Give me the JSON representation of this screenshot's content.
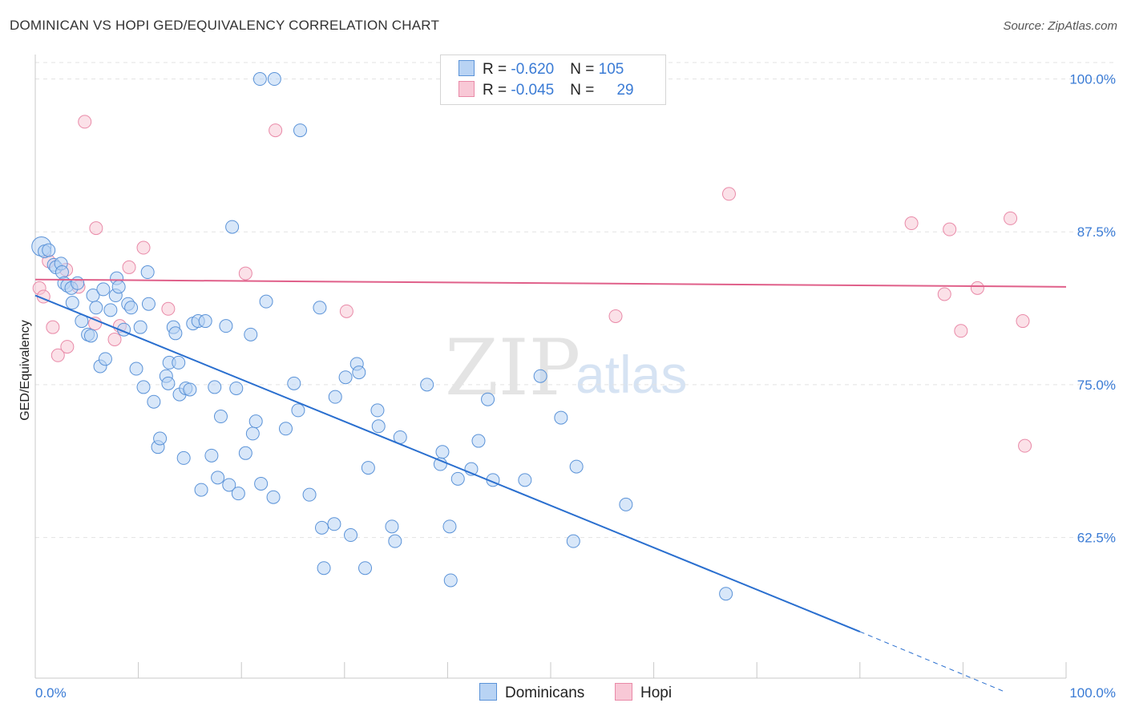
{
  "title": "DOMINICAN VS HOPI GED/EQUIVALENCY CORRELATION CHART",
  "source": "Source: ZipAtlas.com",
  "watermark": {
    "zip": "ZIP",
    "atlas": "atlas"
  },
  "legend": {
    "rows": [
      {
        "r_label": "R = ",
        "r_value": "-0.620",
        "n_label": "N = ",
        "n_value": "105"
      },
      {
        "r_label": "R = ",
        "r_value": "-0.045",
        "n_label": "N = ",
        "n_value": "29"
      }
    ]
  },
  "bottom_legend": {
    "dominicans": "Dominicans",
    "hopi": "Hopi"
  },
  "colors": {
    "blue_fill": "#b8d3f4",
    "blue_stroke": "#5b93d8",
    "blue_line": "#2a6fcf",
    "pink_fill": "#f8c8d6",
    "pink_stroke": "#e98aa8",
    "pink_line": "#e0608a",
    "tick_text": "#3a7bd5",
    "grid": "#e3e3e3"
  },
  "chart_data": {
    "type": "scatter",
    "title": "DOMINICAN VS HOPI GED/EQUIVALENCY CORRELATION CHART",
    "xlabel": "",
    "ylabel": "GED/Equivalency",
    "xlim": [
      0,
      100
    ],
    "ylim": [
      51,
      102
    ],
    "x_tick_labels": [
      "0.0%",
      "100.0%"
    ],
    "y_ticks": [
      62.5,
      75.0,
      87.5,
      100.0
    ],
    "y_tick_labels": [
      "62.5%",
      "75.0%",
      "87.5%",
      "100.0%"
    ],
    "grid": "horizontal dashed",
    "legend_position": "top-center",
    "series": [
      {
        "name": "Dominicans",
        "color": "#5b93d8",
        "trend": {
          "x": [
            0,
            80
          ],
          "y": [
            82.3,
            54.8
          ],
          "dashed_extension": {
            "x": [
              80,
              94
            ],
            "y": [
              54.8,
              49.9
            ]
          }
        },
        "points": [
          [
            0.6,
            86.3
          ],
          [
            0.9,
            85.9
          ],
          [
            1.3,
            86.0
          ],
          [
            1.8,
            84.8
          ],
          [
            2.0,
            84.6
          ],
          [
            2.5,
            84.9
          ],
          [
            2.6,
            84.2
          ],
          [
            2.8,
            83.3
          ],
          [
            3.1,
            83.1
          ],
          [
            3.5,
            82.9
          ],
          [
            4.1,
            83.3
          ],
          [
            3.6,
            81.7
          ],
          [
            4.5,
            80.2
          ],
          [
            5.1,
            79.1
          ],
          [
            5.4,
            79.0
          ],
          [
            5.6,
            82.3
          ],
          [
            5.9,
            81.3
          ],
          [
            6.3,
            76.5
          ],
          [
            6.6,
            82.8
          ],
          [
            6.8,
            77.1
          ],
          [
            7.3,
            81.1
          ],
          [
            7.8,
            82.3
          ],
          [
            7.9,
            83.7
          ],
          [
            8.1,
            83.0
          ],
          [
            8.6,
            79.5
          ],
          [
            9.0,
            81.6
          ],
          [
            9.3,
            81.3
          ],
          [
            9.8,
            76.3
          ],
          [
            10.2,
            79.7
          ],
          [
            10.5,
            74.8
          ],
          [
            10.9,
            84.2
          ],
          [
            11.0,
            81.6
          ],
          [
            11.5,
            73.6
          ],
          [
            11.9,
            69.9
          ],
          [
            12.1,
            70.6
          ],
          [
            12.7,
            75.7
          ],
          [
            12.9,
            75.1
          ],
          [
            13.0,
            76.8
          ],
          [
            13.4,
            79.7
          ],
          [
            13.6,
            79.2
          ],
          [
            13.9,
            76.8
          ],
          [
            14.0,
            74.2
          ],
          [
            14.4,
            69.0
          ],
          [
            14.6,
            74.7
          ],
          [
            15.0,
            74.6
          ],
          [
            15.3,
            80.0
          ],
          [
            15.8,
            80.2
          ],
          [
            16.1,
            66.4
          ],
          [
            16.5,
            80.2
          ],
          [
            17.1,
            69.2
          ],
          [
            17.4,
            74.8
          ],
          [
            17.7,
            67.4
          ],
          [
            18.0,
            72.4
          ],
          [
            18.5,
            79.8
          ],
          [
            18.8,
            66.8
          ],
          [
            19.1,
            87.9
          ],
          [
            19.5,
            74.7
          ],
          [
            19.7,
            66.1
          ],
          [
            20.4,
            69.4
          ],
          [
            20.9,
            79.1
          ],
          [
            21.1,
            71.0
          ],
          [
            21.4,
            72.0
          ],
          [
            21.9,
            66.9
          ],
          [
            22.4,
            81.8
          ],
          [
            23.1,
            65.8
          ],
          [
            24.3,
            71.4
          ],
          [
            25.1,
            75.1
          ],
          [
            25.5,
            72.9
          ],
          [
            26.6,
            66.0
          ],
          [
            27.6,
            81.3
          ],
          [
            27.8,
            63.3
          ],
          [
            28.0,
            60.0
          ],
          [
            29.0,
            63.6
          ],
          [
            29.1,
            74.0
          ],
          [
            30.1,
            75.6
          ],
          [
            30.6,
            62.7
          ],
          [
            31.2,
            76.7
          ],
          [
            31.4,
            76.0
          ],
          [
            32.0,
            60.0
          ],
          [
            32.3,
            68.2
          ],
          [
            33.2,
            72.9
          ],
          [
            33.3,
            71.6
          ],
          [
            34.6,
            63.4
          ],
          [
            34.9,
            62.2
          ],
          [
            35.4,
            70.7
          ],
          [
            38.0,
            75.0
          ],
          [
            39.3,
            68.5
          ],
          [
            39.5,
            69.5
          ],
          [
            40.2,
            63.4
          ],
          [
            40.3,
            59.0
          ],
          [
            41.0,
            67.3
          ],
          [
            42.3,
            68.1
          ],
          [
            43.0,
            70.4
          ],
          [
            43.9,
            73.8
          ],
          [
            44.4,
            67.2
          ],
          [
            47.5,
            67.2
          ],
          [
            49.0,
            75.7
          ],
          [
            51.0,
            72.3
          ],
          [
            52.2,
            62.2
          ],
          [
            52.5,
            68.3
          ],
          [
            57.3,
            65.2
          ],
          [
            67.0,
            57.9
          ],
          [
            21.8,
            100.0
          ],
          [
            23.2,
            100.0
          ],
          [
            25.7,
            95.8
          ]
        ]
      },
      {
        "name": "Hopi",
        "color": "#e98aa8",
        "trend": {
          "x": [
            0,
            100
          ],
          "y": [
            83.6,
            83.0
          ]
        },
        "points": [
          [
            0.4,
            82.9
          ],
          [
            0.8,
            82.2
          ],
          [
            1.3,
            85.1
          ],
          [
            1.7,
            79.7
          ],
          [
            2.2,
            77.4
          ],
          [
            3.1,
            78.1
          ],
          [
            3.0,
            84.4
          ],
          [
            4.2,
            83.0
          ],
          [
            4.8,
            96.5
          ],
          [
            5.8,
            80.0
          ],
          [
            5.9,
            87.8
          ],
          [
            7.7,
            78.7
          ],
          [
            8.2,
            79.8
          ],
          [
            9.1,
            84.6
          ],
          [
            10.5,
            86.2
          ],
          [
            12.9,
            81.2
          ],
          [
            20.4,
            84.1
          ],
          [
            23.3,
            95.8
          ],
          [
            30.2,
            81.0
          ],
          [
            56.3,
            80.6
          ],
          [
            67.3,
            90.6
          ],
          [
            85.0,
            88.2
          ],
          [
            88.2,
            82.4
          ],
          [
            88.7,
            87.7
          ],
          [
            89.8,
            79.4
          ],
          [
            91.4,
            82.9
          ],
          [
            94.6,
            88.6
          ],
          [
            95.8,
            80.2
          ],
          [
            96.0,
            70.0
          ]
        ]
      }
    ]
  }
}
